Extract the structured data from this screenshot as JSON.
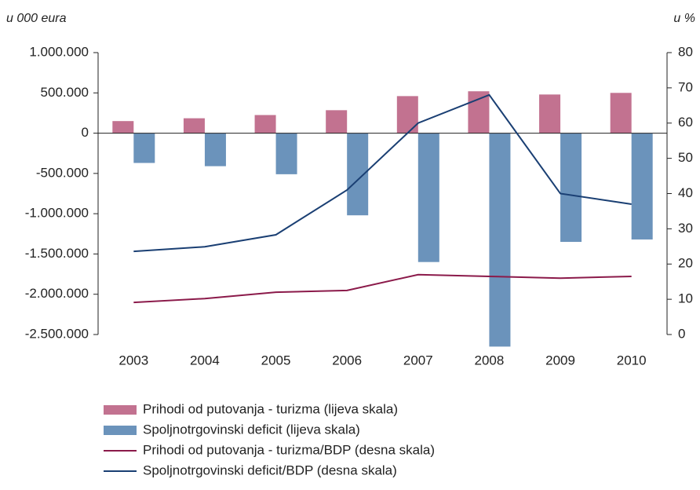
{
  "chart_data": {
    "type": "bar",
    "y_label": "u 000 eura",
    "y2_label": "u %",
    "categories": [
      "2003",
      "2004",
      "2005",
      "2006",
      "2007",
      "2008",
      "2009",
      "2010"
    ],
    "series": [
      {
        "name": "Prihodi od putovanja - turizma (lijeva skala)",
        "type": "bar",
        "color": "#c27290",
        "values": [
          150000,
          185000,
          225000,
          285000,
          460000,
          520000,
          480000,
          500000
        ]
      },
      {
        "name": "Spoljnotrgovinski deficit (lijeva skala)",
        "type": "bar",
        "color": "#6b93bb",
        "values": [
          -370000,
          -410000,
          -510000,
          -1020000,
          -1600000,
          -2650000,
          -1350000,
          -1320000
        ]
      },
      {
        "name": "Prihodi od putovanja - turizma/BDP (desna skala)",
        "type": "line",
        "axis": "y2",
        "color": "#8b1a4a",
        "values": [
          9.1,
          10.2,
          12,
          12.5,
          17,
          16.5,
          16,
          16.5
        ]
      },
      {
        "name": "Spoljnotrgovinski deficit/BDP (desna skala)",
        "type": "line",
        "axis": "y2",
        "color": "#1a3f73",
        "values": [
          23.6,
          24.9,
          28.3,
          41,
          60,
          68,
          40,
          37
        ]
      }
    ],
    "ylim": [
      -2500000,
      1000000
    ],
    "yticks": [
      {
        "value": 1000000,
        "label": "1.000.000"
      },
      {
        "value": 500000,
        "label": "500.000"
      },
      0,
      {
        "value": -500000,
        "label": "-500.000"
      },
      {
        "value": -1000000,
        "label": "-1.000.000"
      },
      {
        "value": -1500000,
        "label": "-1.500.000"
      },
      {
        "value": -2000000,
        "label": "-2.000.000"
      },
      {
        "value": -2500000,
        "label": "-2.500.000"
      }
    ],
    "y2lim": [
      0,
      80
    ],
    "y2ticks": [
      0,
      10,
      20,
      30,
      40,
      50,
      60,
      70,
      80
    ],
    "legend": "bottom-left"
  }
}
